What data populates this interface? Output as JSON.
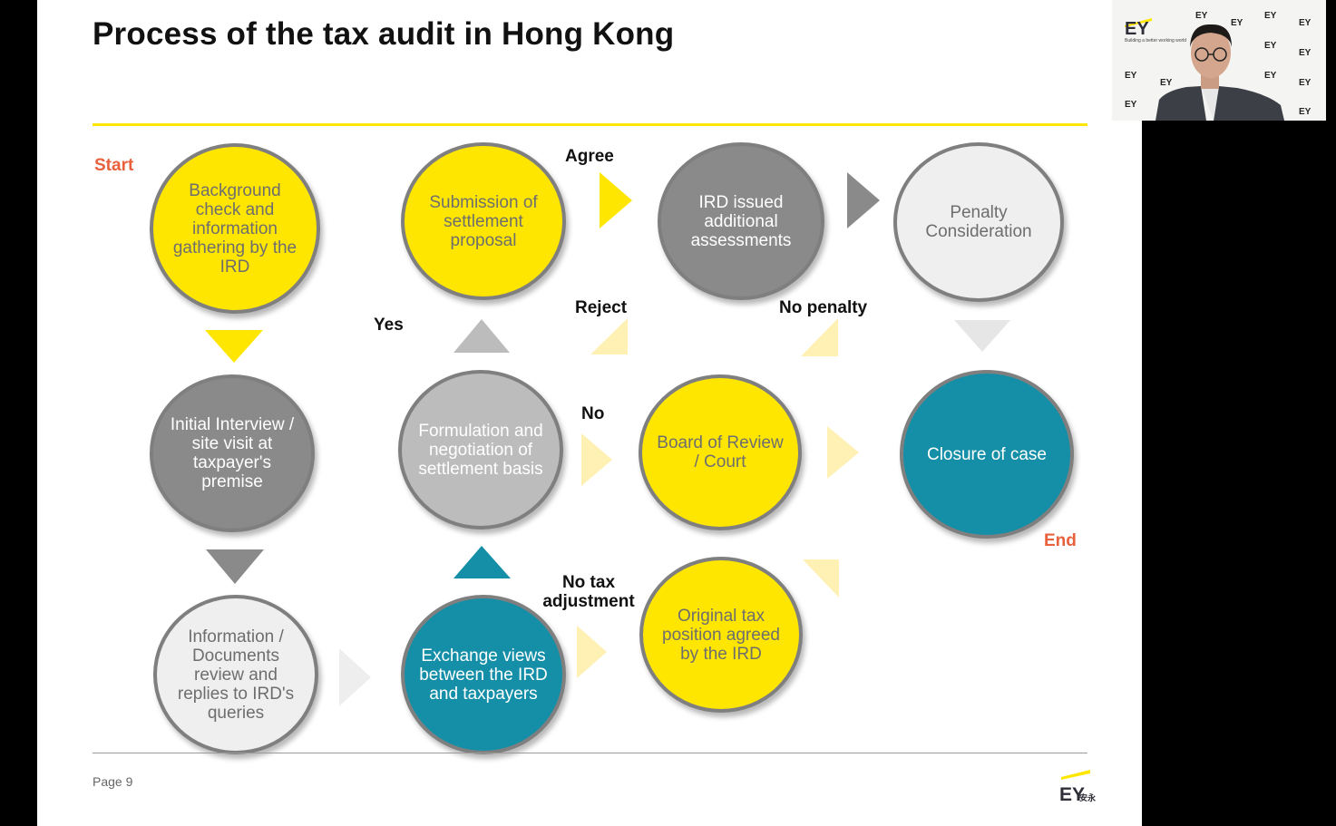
{
  "slide": {
    "title": "Process of the tax audit in Hong Kong",
    "page": "Page 9"
  },
  "labels": {
    "start": "Start",
    "end": "End",
    "agree": "Agree",
    "reject": "Reject",
    "yes": "Yes",
    "no": "No",
    "no_penalty": "No penalty",
    "no_tax_adjustment": "No tax\nadjustment"
  },
  "steps": {
    "background_check": "Background check and information gathering by the IRD",
    "initial_interview": "Initial Interview / site visit at taxpayer's premise",
    "information_review": "Information / Documents review and replies to IRD's queries",
    "submission_proposal": "Submission of settlement proposal",
    "formulation": "Formulation and negotiation of settlement basis",
    "exchange_views": "Exchange views between the IRD and taxpayers",
    "ird_assessments": "IRD issued additional assessments",
    "board_review": "Board of Review / Court",
    "original_position": "Original tax position agreed by the IRD",
    "penalty": "Penalty Consideration",
    "closure": "Closure of case"
  },
  "logo": {
    "brand": "EY",
    "chinese": "安永",
    "tagline": "Building a better working world"
  },
  "webcam": {
    "watermark": "EY"
  },
  "colors": {
    "yellow": "#ffe600",
    "dark_gray": "#8a8a8a",
    "mid_gray": "#bcbcbc",
    "light_gray": "#efefef",
    "teal": "#158fa8",
    "orange": "#e8603c"
  }
}
